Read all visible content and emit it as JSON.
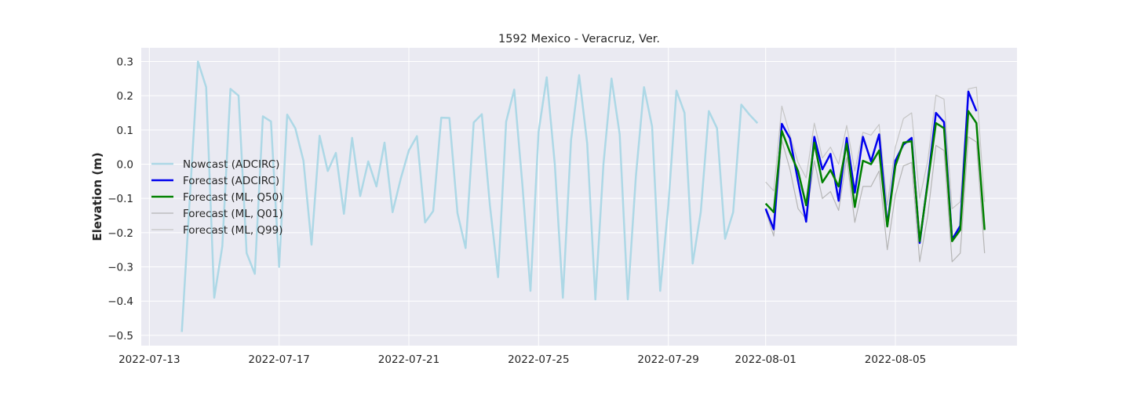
{
  "chart_data": {
    "type": "line",
    "title": "1592 Mexico - Veracruz, Ver.",
    "xlabel": "",
    "ylabel": "Elevation (m)",
    "xlim": [
      "2022-07-12T18:00",
      "2022-08-08T18:00"
    ],
    "ylim": [
      -0.53,
      0.34
    ],
    "grid": true,
    "legend_position": "center-left",
    "x_ticks": [
      "2022-07-13",
      "2022-07-17",
      "2022-07-21",
      "2022-07-25",
      "2022-07-29",
      "2022-08-01",
      "2022-08-05"
    ],
    "y_ticks": [
      "0.3",
      "0.2",
      "0.1",
      "0.0",
      "−0.1",
      "−0.2",
      "−0.3",
      "−0.4",
      "−0.5"
    ],
    "series": [
      {
        "name": "Nowcast (ADCIRC)",
        "color": "#add8e6",
        "linewidth": 2.5,
        "x": [
          "2022-07-14T00:00",
          "2022-07-14T12:00",
          "2022-07-14T18:00",
          "2022-07-15T00:00",
          "2022-07-15T06:00",
          "2022-07-15T12:00",
          "2022-07-15T18:00",
          "2022-07-16T00:00",
          "2022-07-16T06:00",
          "2022-07-16T12:00",
          "2022-07-16T18:00",
          "2022-07-17T00:00",
          "2022-07-17T06:00",
          "2022-07-17T12:00",
          "2022-07-17T18:00",
          "2022-07-18T00:00",
          "2022-07-18T06:00",
          "2022-07-18T12:00",
          "2022-07-18T18:00",
          "2022-07-19T00:00",
          "2022-07-19T06:00",
          "2022-07-19T12:00",
          "2022-07-19T18:00",
          "2022-07-20T00:00",
          "2022-07-20T06:00",
          "2022-07-20T12:00",
          "2022-07-20T18:00",
          "2022-07-21T00:00",
          "2022-07-21T06:00",
          "2022-07-21T12:00",
          "2022-07-21T18:00",
          "2022-07-22T00:00",
          "2022-07-22T06:00",
          "2022-07-22T12:00",
          "2022-07-22T18:00",
          "2022-07-23T00:00",
          "2022-07-23T06:00",
          "2022-07-23T12:00",
          "2022-07-23T18:00",
          "2022-07-24T00:00",
          "2022-07-24T06:00",
          "2022-07-24T12:00",
          "2022-07-24T18:00",
          "2022-07-25T00:00",
          "2022-07-25T06:00",
          "2022-07-25T12:00",
          "2022-07-25T18:00",
          "2022-07-26T00:00",
          "2022-07-26T06:00",
          "2022-07-26T12:00",
          "2022-07-26T18:00",
          "2022-07-27T00:00",
          "2022-07-27T06:00",
          "2022-07-27T12:00",
          "2022-07-27T18:00",
          "2022-07-28T00:00",
          "2022-07-28T06:00",
          "2022-07-28T12:00",
          "2022-07-28T18:00",
          "2022-07-29T00:00",
          "2022-07-29T06:00",
          "2022-07-29T12:00",
          "2022-07-29T18:00",
          "2022-07-30T00:00",
          "2022-07-30T06:00",
          "2022-07-30T12:00",
          "2022-07-30T18:00",
          "2022-07-31T00:00",
          "2022-07-31T06:00",
          "2022-07-31T12:00",
          "2022-07-31T18:00"
        ],
        "y": [
          -0.49,
          0.3,
          0.225,
          -0.39,
          -0.24,
          0.22,
          0.2,
          -0.26,
          -0.32,
          0.14,
          0.125,
          -0.3,
          0.145,
          0.105,
          0.01,
          -0.235,
          0.083,
          -0.02,
          0.033,
          -0.145,
          0.077,
          -0.093,
          0.008,
          -0.065,
          0.063,
          -0.14,
          -0.042,
          0.04,
          0.082,
          -0.17,
          -0.137,
          0.136,
          0.135,
          -0.143,
          -0.245,
          0.122,
          0.146,
          -0.12,
          -0.33,
          0.124,
          0.218,
          -0.06,
          -0.37,
          0.094,
          0.254,
          0.0,
          -0.39,
          0.07,
          0.26,
          0.06,
          -0.395,
          0.0,
          0.25,
          0.087,
          -0.395,
          -0.036,
          0.225,
          0.11,
          -0.37,
          -0.12,
          0.215,
          0.15,
          -0.29,
          -0.14,
          0.155,
          0.105,
          -0.218,
          -0.14,
          0.174,
          0.145,
          0.12
        ]
      },
      {
        "name": "Forecast (ADCIRC)",
        "color": "#0000ee",
        "linewidth": 2.5,
        "x": [
          "2022-08-01T00:00",
          "2022-08-01T06:00",
          "2022-08-01T12:00",
          "2022-08-01T18:00",
          "2022-08-02T00:00",
          "2022-08-02T06:00",
          "2022-08-02T12:00",
          "2022-08-02T18:00",
          "2022-08-03T00:00",
          "2022-08-03T06:00",
          "2022-08-03T12:00",
          "2022-08-03T18:00",
          "2022-08-04T00:00",
          "2022-08-04T06:00",
          "2022-08-04T12:00",
          "2022-08-04T18:00",
          "2022-08-05T00:00",
          "2022-08-05T06:00",
          "2022-08-05T12:00",
          "2022-08-05T18:00",
          "2022-08-06T00:00",
          "2022-08-06T06:00",
          "2022-08-06T12:00",
          "2022-08-06T18:00",
          "2022-08-07T00:00",
          "2022-08-07T06:00",
          "2022-08-07T12:00",
          "2022-08-07T18:00"
        ],
        "y": [
          -0.13,
          -0.19,
          0.118,
          0.075,
          -0.05,
          -0.168,
          0.08,
          -0.015,
          0.03,
          -0.107,
          0.077,
          -0.083,
          0.08,
          0.008,
          0.087,
          -0.18,
          0.01,
          0.057,
          0.077,
          -0.23,
          -0.05,
          0.15,
          0.123,
          -0.22,
          -0.18,
          0.212,
          0.155,
          null
        ]
      },
      {
        "name": "Forecast (ML, Q50)",
        "color": "#008000",
        "linewidth": 2.5,
        "x": [
          "2022-08-01T00:00",
          "2022-08-01T06:00",
          "2022-08-01T12:00",
          "2022-08-01T18:00",
          "2022-08-02T00:00",
          "2022-08-02T06:00",
          "2022-08-02T12:00",
          "2022-08-02T18:00",
          "2022-08-03T00:00",
          "2022-08-03T06:00",
          "2022-08-03T12:00",
          "2022-08-03T18:00",
          "2022-08-04T00:00",
          "2022-08-04T06:00",
          "2022-08-04T12:00",
          "2022-08-04T18:00",
          "2022-08-05T00:00",
          "2022-08-05T06:00",
          "2022-08-05T12:00",
          "2022-08-05T18:00",
          "2022-08-06T00:00",
          "2022-08-06T06:00",
          "2022-08-06T12:00",
          "2022-08-06T18:00",
          "2022-08-07T00:00",
          "2022-08-07T06:00",
          "2022-08-07T12:00",
          "2022-08-07T18:00"
        ],
        "y": [
          -0.115,
          -0.14,
          0.097,
          0.035,
          -0.02,
          -0.12,
          0.063,
          -0.053,
          -0.017,
          -0.065,
          0.06,
          -0.125,
          0.01,
          0.0,
          0.04,
          -0.182,
          -0.005,
          0.063,
          0.067,
          -0.225,
          -0.055,
          0.12,
          0.105,
          -0.225,
          -0.192,
          0.155,
          0.12,
          -0.192
        ]
      },
      {
        "name": "Forecast (ML, Q01)",
        "color": "#b5b5b5",
        "linewidth": 1.2,
        "x": [
          "2022-08-01T00:00",
          "2022-08-01T06:00",
          "2022-08-01T12:00",
          "2022-08-01T18:00",
          "2022-08-02T00:00",
          "2022-08-02T06:00",
          "2022-08-02T12:00",
          "2022-08-02T18:00",
          "2022-08-03T00:00",
          "2022-08-03T06:00",
          "2022-08-03T12:00",
          "2022-08-03T18:00",
          "2022-08-04T00:00",
          "2022-08-04T06:00",
          "2022-08-04T12:00",
          "2022-08-04T18:00",
          "2022-08-05T00:00",
          "2022-08-05T06:00",
          "2022-08-05T12:00",
          "2022-08-05T18:00",
          "2022-08-06T00:00",
          "2022-08-06T06:00",
          "2022-08-06T12:00",
          "2022-08-06T18:00",
          "2022-08-07T00:00",
          "2022-08-07T06:00",
          "2022-08-07T12:00",
          "2022-08-07T18:00"
        ],
        "y": [
          -0.135,
          -0.21,
          0.07,
          -0.015,
          -0.13,
          -0.16,
          0.01,
          -0.1,
          -0.08,
          -0.135,
          0.02,
          -0.17,
          -0.065,
          -0.065,
          -0.02,
          -0.25,
          -0.09,
          -0.005,
          0.005,
          -0.285,
          -0.15,
          0.055,
          0.04,
          -0.285,
          -0.26,
          0.08,
          0.065,
          -0.26
        ]
      },
      {
        "name": "Forecast (ML, Q99)",
        "color": "#c5c5c5",
        "linewidth": 1.2,
        "x": [
          "2022-08-01T00:00",
          "2022-08-01T06:00",
          "2022-08-01T12:00",
          "2022-08-01T18:00",
          "2022-08-02T00:00",
          "2022-08-02T06:00",
          "2022-08-02T12:00",
          "2022-08-02T18:00",
          "2022-08-03T00:00",
          "2022-08-03T06:00",
          "2022-08-03T12:00",
          "2022-08-03T18:00",
          "2022-08-04T00:00",
          "2022-08-04T06:00",
          "2022-08-04T12:00",
          "2022-08-04T18:00",
          "2022-08-05T00:00",
          "2022-08-05T06:00",
          "2022-08-05T12:00",
          "2022-08-05T18:00",
          "2022-08-06T00:00",
          "2022-08-06T06:00",
          "2022-08-06T12:00",
          "2022-08-06T18:00",
          "2022-08-07T00:00",
          "2022-08-07T06:00",
          "2022-08-07T12:00",
          "2022-08-07T18:00"
        ],
        "y": [
          -0.052,
          -0.078,
          0.17,
          0.085,
          0.005,
          -0.04,
          0.12,
          0.018,
          0.05,
          -0.0,
          0.113,
          -0.02,
          0.093,
          0.085,
          0.116,
          -0.12,
          0.05,
          0.133,
          0.15,
          -0.1,
          0.01,
          0.202,
          0.19,
          -0.13,
          -0.11,
          0.22,
          0.225,
          -0.11
        ]
      }
    ]
  }
}
